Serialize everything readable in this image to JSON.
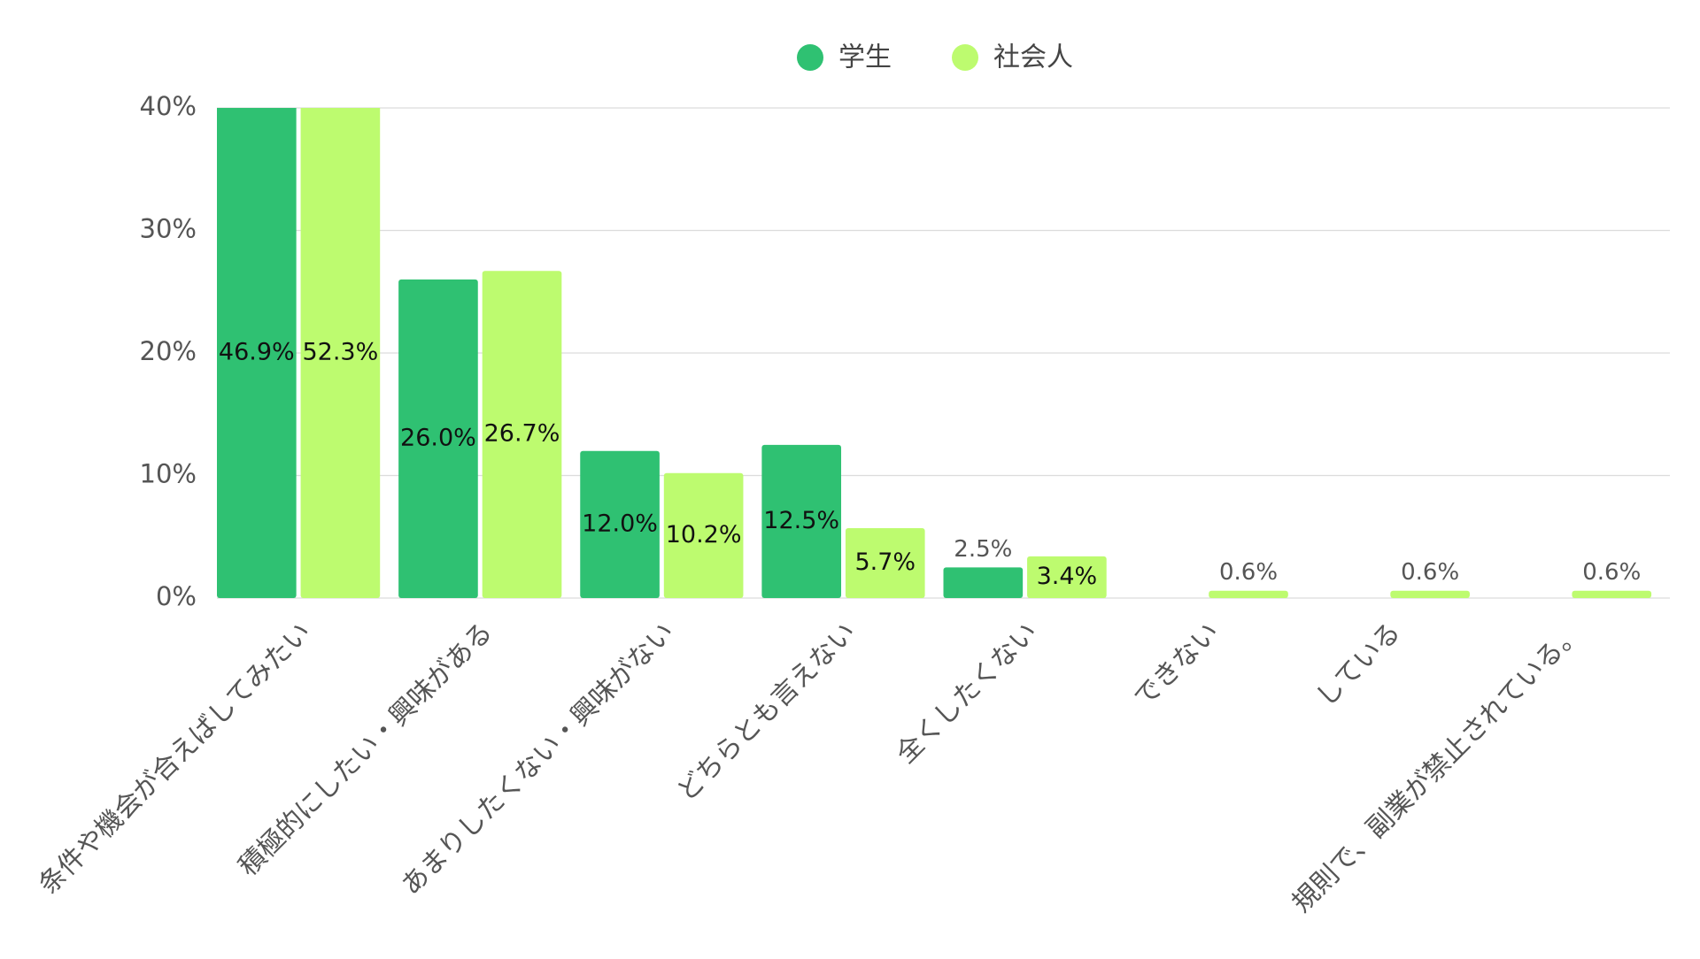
{
  "chart_data": {
    "type": "bar",
    "categories": [
      "条件や機会が合えばしてみたい",
      "積極的にしたい・興味がある",
      "あまりしたくない・興味がない",
      "どちらとも言えない",
      "全くしたくない",
      "できない",
      "している",
      "規則で、副業が禁止されている。"
    ],
    "series": [
      {
        "name": "学生",
        "color": "#2fc172",
        "values": [
          46.9,
          26.0,
          12.0,
          12.5,
          2.5,
          null,
          null,
          null
        ],
        "value_labels": [
          "46.9%",
          "26.0%",
          "12.0%",
          "12.5%",
          "2.5%",
          null,
          null,
          null
        ]
      },
      {
        "name": "社会人",
        "color": "#bdfb6f",
        "values": [
          52.3,
          26.7,
          10.2,
          5.7,
          3.4,
          0.6,
          0.6,
          0.6
        ],
        "value_labels": [
          "52.3%",
          "26.7%",
          "10.2%",
          "5.7%",
          "3.4%",
          "0.6%",
          "0.6%",
          "0.6%"
        ]
      }
    ],
    "ylim": [
      0,
      40
    ],
    "yticks": [
      {
        "value": 0,
        "label": "0%"
      },
      {
        "value": 10,
        "label": "10%"
      },
      {
        "value": 20,
        "label": "20%"
      },
      {
        "value": 30,
        "label": "30%"
      },
      {
        "value": 40,
        "label": "40%"
      }
    ],
    "grid": true,
    "legend": "top"
  }
}
